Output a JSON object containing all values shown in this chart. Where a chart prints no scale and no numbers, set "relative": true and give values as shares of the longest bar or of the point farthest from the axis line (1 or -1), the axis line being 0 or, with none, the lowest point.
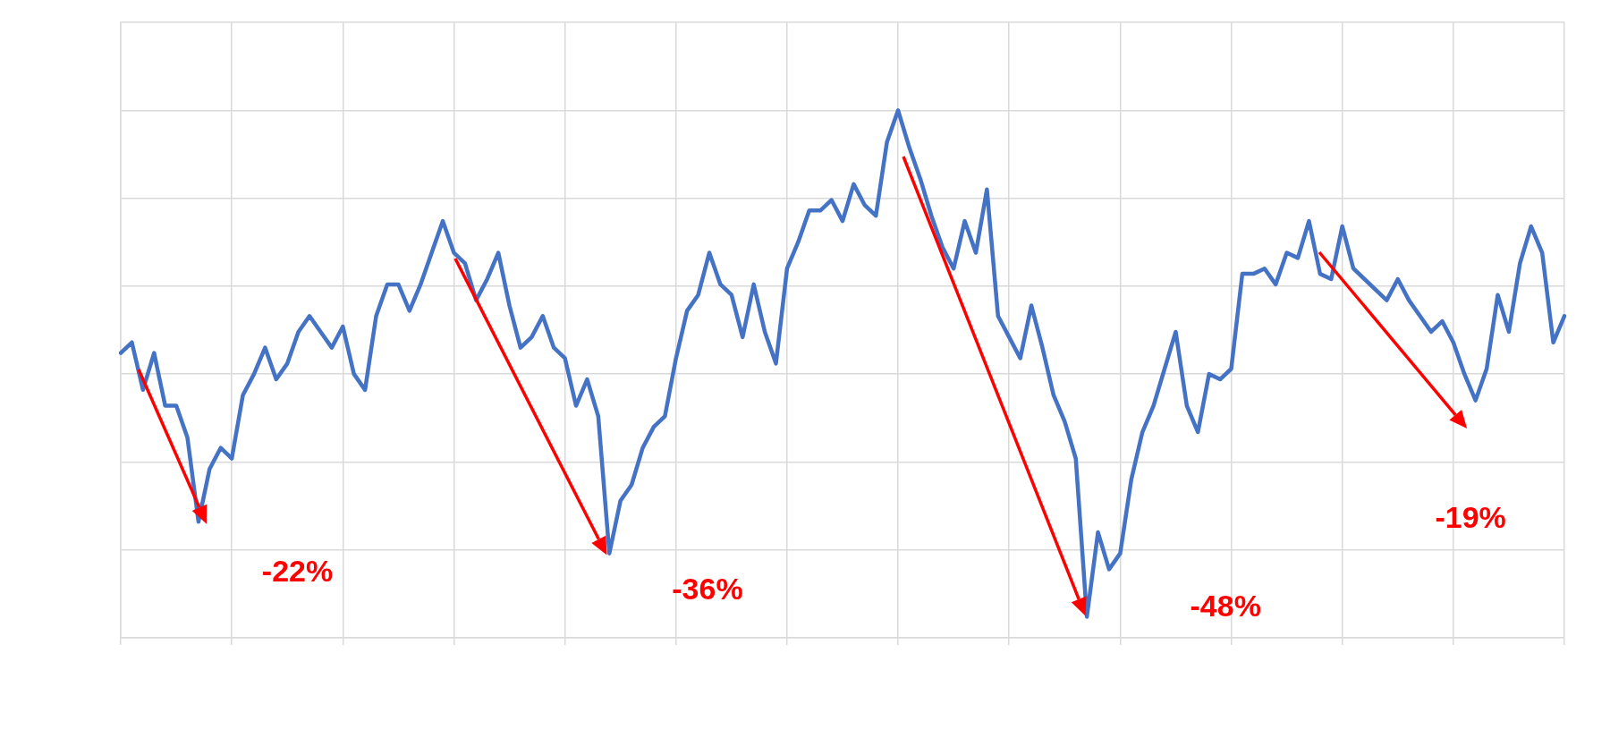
{
  "chart_data": {
    "type": "line",
    "relative": true,
    "grid": true,
    "marker": "none",
    "categories": [
      null,
      null,
      null,
      null,
      null,
      null,
      null,
      null,
      null,
      null,
      null,
      null,
      null,
      null,
      null,
      null,
      null,
      null,
      null,
      null,
      null,
      null,
      null,
      null,
      null,
      null,
      null,
      null,
      null,
      null,
      null,
      null,
      null,
      null,
      null,
      null,
      null,
      null,
      null,
      null,
      null,
      null,
      null,
      null,
      null,
      null,
      null,
      null,
      null,
      null,
      null,
      null,
      null,
      null,
      null,
      null,
      null,
      null,
      null,
      null,
      null,
      null,
      null,
      null,
      null,
      null,
      null,
      null,
      null,
      null,
      null,
      null,
      null,
      null,
      null,
      null,
      null,
      null,
      null,
      null,
      null,
      null,
      null,
      null,
      null,
      null,
      null,
      null,
      null,
      null,
      null,
      null,
      null,
      null,
      null,
      null,
      null,
      null,
      null,
      null,
      null,
      null,
      null,
      null,
      null,
      null,
      null,
      null,
      null,
      null,
      null,
      null,
      null,
      null,
      null,
      null,
      null,
      null,
      null,
      null,
      null,
      null,
      null,
      null,
      null,
      null,
      null,
      null,
      null,
      null,
      null
    ],
    "series": [
      {
        "color": "#4472c4",
        "values": [
          0.54,
          0.56,
          0.47,
          0.54,
          0.44,
          0.44,
          0.38,
          0.22,
          0.32,
          0.36,
          0.34,
          0.46,
          0.5,
          0.55,
          0.49,
          0.52,
          0.58,
          0.61,
          0.58,
          0.55,
          0.59,
          0.5,
          0.47,
          0.61,
          0.67,
          0.67,
          0.62,
          0.67,
          0.73,
          0.79,
          0.73,
          0.71,
          0.64,
          0.68,
          0.73,
          0.63,
          0.55,
          0.57,
          0.61,
          0.55,
          0.53,
          0.44,
          0.49,
          0.42,
          0.16,
          0.26,
          0.29,
          0.36,
          0.4,
          0.42,
          0.53,
          0.62,
          0.65,
          0.73,
          0.67,
          0.65,
          0.57,
          0.67,
          0.58,
          0.52,
          0.7,
          0.75,
          0.81,
          0.81,
          0.83,
          0.79,
          0.86,
          0.82,
          0.8,
          0.94,
          1,
          0.93,
          0.87,
          0.8,
          0.74,
          0.7,
          0.79,
          0.73,
          0.85,
          0.61,
          0.57,
          0.53,
          0.63,
          0.55,
          0.46,
          0.41,
          0.34,
          0.04,
          0.2,
          0.13,
          0.16,
          0.3,
          0.39,
          0.44,
          0.51,
          0.58,
          0.44,
          0.39,
          0.5,
          0.49,
          0.51,
          0.69,
          0.69,
          0.7,
          0.67,
          0.73,
          0.72,
          0.79,
          0.69,
          0.68,
          0.78,
          0.7,
          0.68,
          0.66,
          0.64,
          0.68,
          0.64,
          0.61,
          0.58,
          0.6,
          0.56,
          0.5,
          0.45,
          0.51,
          0.65,
          0.58,
          0.71,
          0.78,
          0.73,
          0.56,
          0.61
        ]
      }
    ],
    "annotations": [
      "-22%",
      "-36%",
      "-48%",
      "-19%"
    ]
  }
}
